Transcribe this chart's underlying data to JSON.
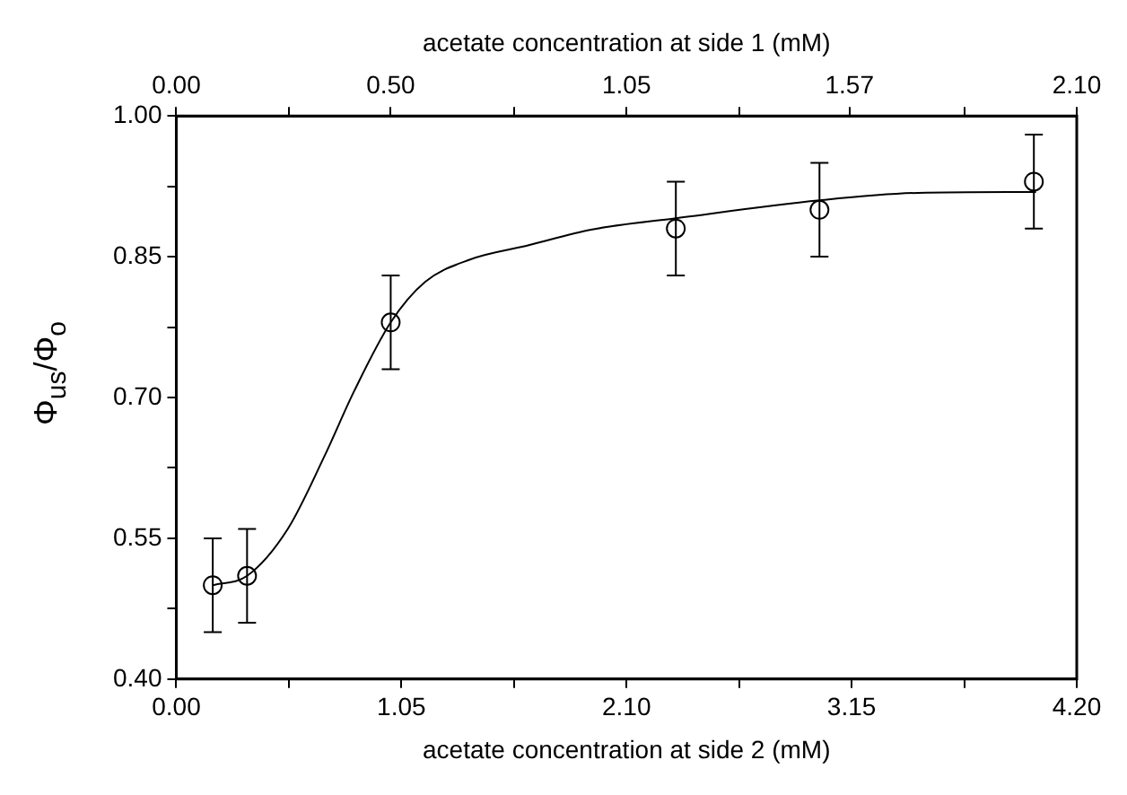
{
  "chart_data": {
    "type": "scatter",
    "xlabel": "acetate concentration at side 2 (mM)",
    "x2label": "acetate concentration at side 1 (mM)",
    "ylabel": "Φ$_{us}$/Φ$_{o}$",
    "xlim": [
      0,
      4.2
    ],
    "xticks": [
      {
        "value": 0,
        "label": "0.00"
      },
      {
        "value": 0.525,
        "label": null
      },
      1.05,
      {
        "value": 1.575,
        "label": null
      },
      {
        "value": 2.1,
        "label": "2.10"
      },
      {
        "value": 2.625,
        "label": null
      },
      3.15,
      {
        "value": 3.675,
        "label": null
      },
      {
        "value": 4.2,
        "label": "4.20"
      }
    ],
    "x2lim": [
      0,
      2.1
    ],
    "x2ticks": [
      {
        "value": 0,
        "label": "0.00"
      },
      {
        "value": 0.2625,
        "label": null
      },
      {
        "value": 0.5,
        "label": "0.50"
      },
      {
        "value": 0.7875,
        "label": null
      },
      1.05,
      {
        "value": 1.3125,
        "label": null
      },
      1.57,
      {
        "value": 1.8375,
        "label": null
      },
      {
        "value": 2.1,
        "label": "2.10"
      }
    ],
    "ylim": [
      0.4,
      1.0
    ],
    "yticks": [
      {
        "value": 0.4,
        "label": "0.40"
      },
      {
        "value": 0.475,
        "label": null
      },
      0.55,
      {
        "value": 0.625,
        "label": null
      },
      {
        "value": 0.7,
        "label": "0.70"
      },
      {
        "value": 0.775,
        "label": null
      },
      0.85,
      {
        "value": 0.925,
        "label": null
      },
      {
        "value": 1.0,
        "label": "1.00"
      }
    ],
    "grid": false,
    "legend": false,
    "series": [
      {
        "type": "scatter",
        "color": "#000000",
        "marker": "circle",
        "x": [
          0.17,
          0.33,
          1.0,
          2.33,
          3.0,
          4.0
        ],
        "values": [
          0.5,
          0.51,
          0.78,
          0.88,
          0.9,
          0.93
        ],
        "errors": [
          0.05,
          0.05,
          0.05,
          0.05,
          0.05,
          0.05
        ]
      },
      {
        "type": "line",
        "color": "#000000",
        "marker": "none",
        "line_style": "solid",
        "x": [
          0.17,
          0.33,
          0.52,
          0.69,
          0.83,
          1.0,
          1.16,
          1.37,
          1.64,
          1.94,
          2.33,
          3.0,
          3.46,
          4.01
        ],
        "values": [
          0.5,
          0.51,
          0.56,
          0.637,
          0.707,
          0.78,
          0.823,
          0.847,
          0.862,
          0.879,
          0.891,
          0.91,
          0.918,
          0.919
        ]
      }
    ]
  }
}
